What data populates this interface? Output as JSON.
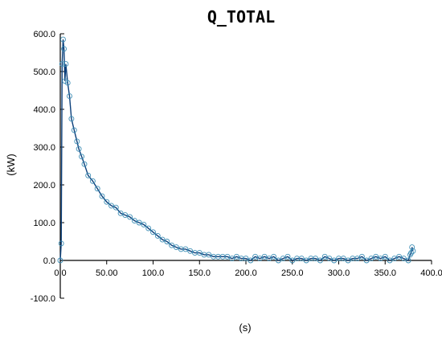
{
  "chart_data": {
    "type": "line",
    "title": "Q_TOTAL",
    "xlabel": "(s)",
    "ylabel": "(kW)",
    "xlim": [
      0,
      400
    ],
    "ylim": [
      -100,
      600
    ],
    "x_ticks": [
      "0.0",
      "50.00",
      "100.0",
      "150.0",
      "200.0",
      "250.0",
      "300.0",
      "350.0",
      "400.0"
    ],
    "y_ticks": [
      "-100.0",
      "0.0",
      "100.0",
      "200.0",
      "300.0",
      "400.0",
      "500.0",
      "600.0"
    ],
    "grid": false,
    "colors": {
      "line": "#0b3f7a",
      "marker": "#3f8fb6"
    },
    "series": [
      {
        "x": [
          0,
          1,
          2,
          3,
          4,
          5,
          6,
          8,
          10,
          12,
          15,
          18,
          20,
          23,
          26,
          30,
          35,
          40,
          45,
          50,
          55,
          60,
          65,
          70,
          75,
          80,
          85,
          90,
          95,
          100,
          105,
          110,
          115,
          120,
          125,
          130,
          135,
          140,
          145,
          150,
          155,
          160,
          165,
          170,
          175,
          180,
          185,
          190,
          195,
          200,
          205,
          210,
          215,
          220,
          225,
          230,
          235,
          240,
          245,
          250,
          255,
          260,
          265,
          270,
          275,
          280,
          285,
          290,
          295,
          300,
          305,
          310,
          315,
          320,
          325,
          330,
          335,
          340,
          345,
          350,
          355,
          360,
          365,
          370,
          375,
          377,
          378,
          379,
          380
        ],
        "values": [
          0,
          45,
          520,
          585,
          560,
          475,
          520,
          470,
          435,
          375,
          345,
          315,
          295,
          275,
          255,
          225,
          210,
          190,
          170,
          155,
          145,
          140,
          125,
          120,
          115,
          105,
          100,
          95,
          85,
          75,
          65,
          55,
          50,
          40,
          35,
          30,
          30,
          25,
          20,
          20,
          15,
          15,
          10,
          10,
          10,
          10,
          5,
          10,
          5,
          5,
          0,
          10,
          5,
          10,
          5,
          10,
          0,
          5,
          10,
          0,
          5,
          5,
          0,
          5,
          5,
          0,
          10,
          5,
          0,
          5,
          5,
          0,
          5,
          5,
          10,
          0,
          5,
          10,
          5,
          10,
          0,
          5,
          10,
          5,
          0,
          15,
          20,
          35,
          25
        ]
      }
    ]
  }
}
